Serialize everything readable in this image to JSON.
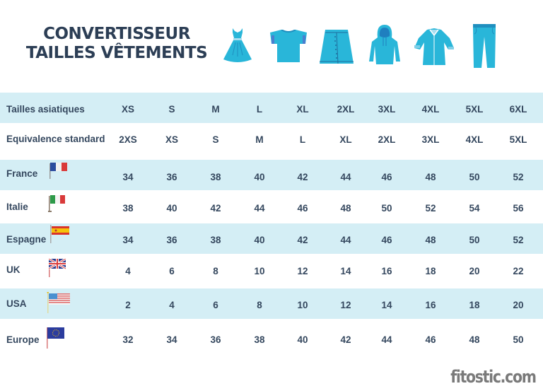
{
  "header": {
    "title_line1": "CONVERTISSEUR",
    "title_line2": "TAILLES VÊTEMENTS",
    "icons": [
      "dress-icon",
      "tshirt-icon",
      "skirt-icon",
      "hoodie-icon",
      "coat-icon",
      "jeans-icon"
    ],
    "icon_color": "#29b6d9"
  },
  "table": {
    "band_color": "#d4eef5",
    "text_color": "#34475e",
    "rows": [
      {
        "label": "Tailles asiatiques",
        "flag": null,
        "values": [
          "XS",
          "S",
          "M",
          "L",
          "XL",
          "2XL",
          "3XL",
          "4XL",
          "5XL",
          "6XL"
        ]
      },
      {
        "label": "Equivalence standard",
        "flag": null,
        "values": [
          "2XS",
          "XS",
          "S",
          "M",
          "L",
          "XL",
          "2XL",
          "3XL",
          "4XL",
          "5XL"
        ]
      },
      {
        "label": "France",
        "flag": "france-flag-icon",
        "values": [
          "34",
          "36",
          "38",
          "40",
          "42",
          "44",
          "46",
          "48",
          "50",
          "52"
        ]
      },
      {
        "label": "Italie",
        "flag": "italy-flag-icon",
        "values": [
          "38",
          "40",
          "42",
          "44",
          "46",
          "48",
          "50",
          "52",
          "54",
          "56"
        ]
      },
      {
        "label": "Espagne",
        "flag": "spain-flag-icon",
        "values": [
          "34",
          "36",
          "38",
          "40",
          "42",
          "44",
          "46",
          "48",
          "50",
          "52"
        ]
      },
      {
        "label": "UK",
        "flag": "uk-flag-icon",
        "values": [
          "4",
          "6",
          "8",
          "10",
          "12",
          "14",
          "16",
          "18",
          "20",
          "22"
        ]
      },
      {
        "label": "USA",
        "flag": "usa-flag-icon",
        "values": [
          "2",
          "4",
          "6",
          "8",
          "10",
          "12",
          "14",
          "16",
          "18",
          "20"
        ]
      },
      {
        "label": "Europe",
        "flag": "eu-flag-icon",
        "values": [
          "32",
          "34",
          "36",
          "38",
          "40",
          "42",
          "44",
          "46",
          "48",
          "50"
        ]
      }
    ]
  },
  "watermark": "fitostic.com"
}
